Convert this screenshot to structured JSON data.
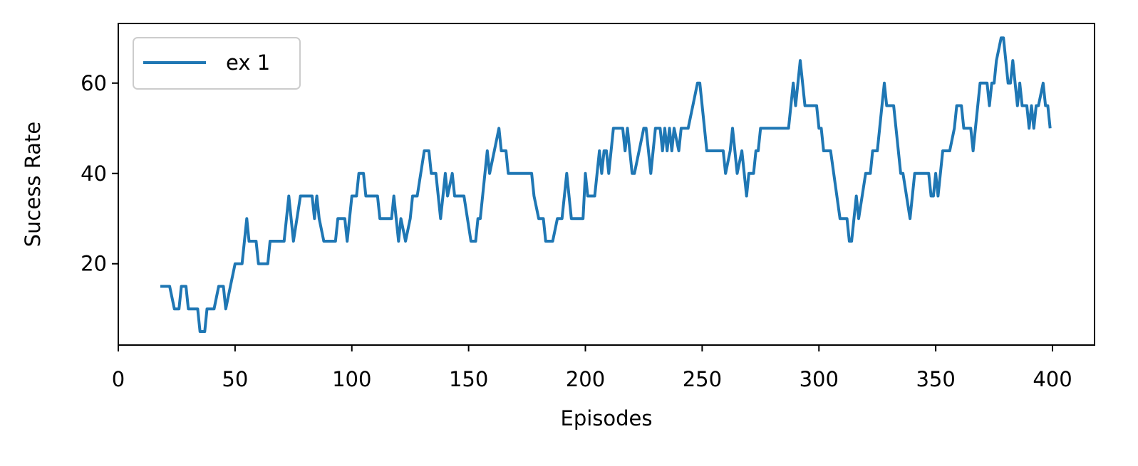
{
  "chart_data": {
    "type": "line",
    "xlabel": "Episodes",
    "ylabel": "Sucess Rate",
    "xlim": [
      0,
      418
    ],
    "ylim": [
      2,
      73.2
    ],
    "xticks": [
      0,
      50,
      100,
      150,
      200,
      250,
      300,
      350,
      400
    ],
    "yticks": [
      20,
      40,
      60
    ],
    "legend": "upper left",
    "series": [
      {
        "name": "ex 1",
        "color": "#1f77b4",
        "x": [
          18,
          22,
          24,
          26,
          27,
          29,
          30,
          34,
          35,
          37,
          38,
          41,
          43,
          45,
          46,
          48,
          50,
          53,
          55,
          56,
          59,
          60,
          64,
          65,
          71,
          73,
          75,
          78,
          83,
          84,
          85,
          86,
          88,
          93,
          94,
          97,
          98,
          100,
          102,
          103,
          105,
          106,
          111,
          112,
          117,
          118,
          120,
          121,
          123,
          125,
          126,
          128,
          131,
          133,
          134,
          136,
          138,
          140,
          141,
          143,
          144,
          148,
          151,
          153,
          154,
          155,
          158,
          159,
          161,
          163,
          164,
          166,
          167,
          177,
          178,
          180,
          182,
          183,
          186,
          188,
          190,
          192,
          194,
          199,
          200,
          201,
          204,
          206,
          207,
          208,
          209,
          210,
          212,
          216,
          217,
          218,
          220,
          221,
          223,
          225,
          226,
          228,
          230,
          232,
          233,
          234,
          235,
          236,
          237,
          238,
          240,
          241,
          244,
          246,
          248,
          249,
          252,
          259,
          260,
          262,
          263,
          264,
          265,
          267,
          269,
          270,
          272,
          273,
          274,
          275,
          287,
          289,
          290,
          292,
          294,
          299,
          300,
          301,
          302,
          305,
          309,
          312,
          313,
          314,
          315,
          316,
          317,
          320,
          322,
          323,
          325,
          327,
          328,
          329,
          332,
          335,
          336,
          339,
          341,
          347,
          348,
          349,
          350,
          351,
          353,
          356,
          358,
          359,
          361,
          362,
          365,
          366,
          369,
          372,
          373,
          374,
          375,
          376,
          378,
          379,
          381,
          382,
          383,
          385,
          386,
          387,
          389,
          390,
          391,
          392,
          393,
          394,
          396,
          397,
          398,
          399
        ],
        "values": [
          15,
          15,
          10,
          10,
          15,
          15,
          10,
          10,
          5,
          5,
          10,
          10,
          15,
          15,
          10,
          15,
          20,
          20,
          30,
          25,
          25,
          20,
          20,
          25,
          25,
          35,
          25,
          35,
          35,
          30,
          35,
          30,
          25,
          25,
          30,
          30,
          25,
          35,
          35,
          40,
          40,
          35,
          35,
          30,
          30,
          35,
          25,
          30,
          25,
          30,
          35,
          35,
          45,
          45,
          40,
          40,
          30,
          40,
          35,
          40,
          35,
          35,
          25,
          25,
          30,
          30,
          45,
          40,
          45,
          50,
          45,
          45,
          40,
          40,
          35,
          30,
          30,
          25,
          25,
          30,
          30,
          40,
          30,
          30,
          40,
          35,
          35,
          45,
          40,
          45,
          45,
          40,
          50,
          50,
          45,
          50,
          40,
          40,
          45,
          50,
          50,
          40,
          50,
          50,
          45,
          50,
          45,
          50,
          45,
          50,
          45,
          50,
          50,
          55,
          60,
          60,
          45,
          45,
          40,
          45,
          50,
          45,
          40,
          45,
          35,
          40,
          40,
          45,
          45,
          50,
          50,
          60,
          55,
          65,
          55,
          55,
          50,
          50,
          45,
          45,
          30,
          30,
          25,
          25,
          30,
          35,
          30,
          40,
          40,
          45,
          45,
          55,
          60,
          55,
          55,
          40,
          40,
          30,
          40,
          40,
          35,
          35,
          40,
          35,
          45,
          45,
          50,
          55,
          55,
          50,
          50,
          45,
          60,
          60,
          55,
          60,
          60,
          65,
          70,
          70,
          60,
          60,
          65,
          55,
          60,
          55,
          55,
          50,
          55,
          50,
          55,
          55,
          60,
          55,
          55,
          50
        ]
      }
    ]
  }
}
